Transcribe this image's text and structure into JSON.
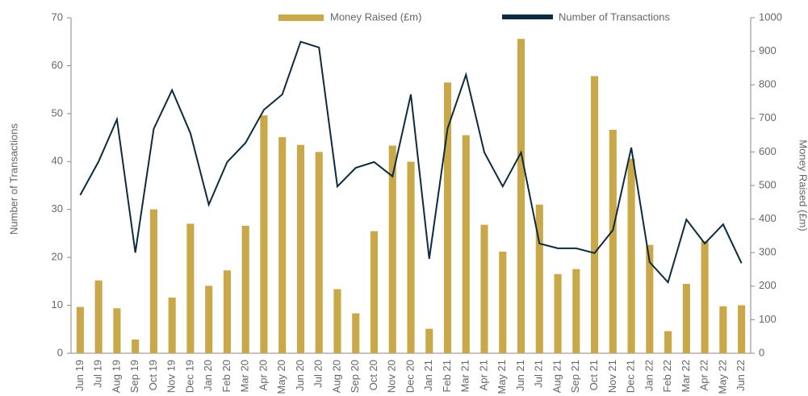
{
  "chart_data": {
    "type": "bar",
    "categories": [
      "Jun 19",
      "Jul 19",
      "Aug 19",
      "Sep 19",
      "Oct 19",
      "Nov 19",
      "Dec 19",
      "Jan 20",
      "Feb 20",
      "Mar 20",
      "Apr 20",
      "May 20",
      "Jun 20",
      "Jul 20",
      "Aug 20",
      "Sep 20",
      "Oct 20",
      "Nov 20",
      "Dec 20",
      "Jan 21",
      "Feb 21",
      "Mar 21",
      "Apr 21",
      "May 21",
      "Jun 21",
      "Jul 21",
      "Aug 21",
      "Sep 21",
      "Oct 21",
      "Nov 21",
      "Dec 21",
      "Jan 22",
      "Feb 22",
      "Mar 22",
      "Apr 22",
      "May 22",
      "Jun 22"
    ],
    "series": [
      {
        "name": "Money Raised (£m)",
        "type": "bar",
        "axis": "y2",
        "color": "#c9a84a",
        "values": [
          138,
          217,
          134,
          41,
          429,
          166,
          386,
          201,
          247,
          380,
          709,
          644,
          621,
          600,
          191,
          119,
          364,
          619,
          571,
          73,
          807,
          650,
          383,
          303,
          937,
          443,
          236,
          251,
          826,
          666,
          580,
          323,
          66,
          207,
          334,
          140,
          143
        ]
      },
      {
        "name": "Number of Transactions",
        "type": "line",
        "color": "#0d2b3e",
        "values": [
          33,
          40,
          48.8,
          21,
          46.8,
          54.9,
          45.9,
          31,
          39.9,
          43.9,
          50.8,
          54,
          65,
          63.8,
          34.8,
          38.7,
          39.9,
          36.9,
          54,
          19.7,
          46.9,
          58.1,
          41.9,
          34.8,
          41.9,
          22.9,
          21.9,
          21.9,
          20.9,
          25.7,
          42.9,
          19,
          14.8,
          27.9,
          22.9,
          26.9,
          18.8
        ]
      }
    ],
    "ylabel": "Number of Transactions",
    "y2label": "Money Raised (£m)",
    "ylim": [
      0,
      70
    ],
    "yticks": [
      0,
      10,
      20,
      30,
      40,
      50,
      60,
      70
    ],
    "y2lim": [
      0,
      1000
    ],
    "y2ticks": [
      0,
      100,
      200,
      300,
      400,
      500,
      600,
      700,
      800,
      900,
      1000
    ],
    "legend": "top"
  }
}
